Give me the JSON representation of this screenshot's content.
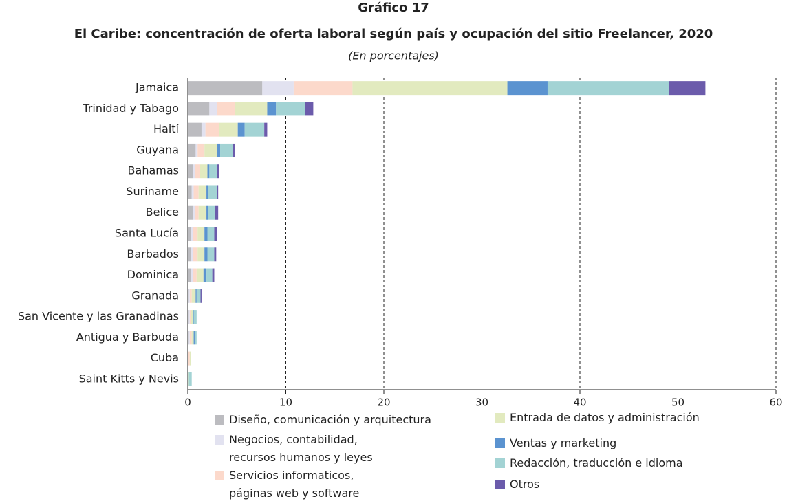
{
  "chart_data": {
    "type": "stacked-barh",
    "title": "Gráfico 17",
    "subtitle": "El Caribe: concentración de oferta laboral según país y ocupación del sitio Freelancer, 2020",
    "note": "(En porcentajes)",
    "categories": [
      "Jamaica",
      "Trinidad y Tabago",
      "Haití",
      "Guyana",
      "Bahamas",
      "Suriname",
      "Belice",
      "Santa Lucía",
      "Barbados",
      "Dominica",
      "Granada",
      "San Vicente y las Granadinas",
      "Antigua y Barbuda",
      "Cuba",
      "Saint Kitts y Nevis"
    ],
    "series": [
      {
        "name": "Diseño, comunicación y arquitectura",
        "color": "#bcbcc0",
        "values": [
          7.6,
          2.2,
          1.4,
          0.8,
          0.5,
          0.4,
          0.5,
          0.3,
          0.3,
          0.3,
          0.1,
          0.1,
          0.1,
          0,
          0
        ]
      },
      {
        "name": "Negocios, contabilidad,\nrecursos humanos y leyes",
        "color": "#e2e2f0",
        "values": [
          3.2,
          0.8,
          0.4,
          0.2,
          0.2,
          0.2,
          0.2,
          0.2,
          0.2,
          0.2,
          0.1,
          0.1,
          0.1,
          0,
          0
        ]
      },
      {
        "name": "Servicios informaticos,\npáginas web y software",
        "color": "#fcd9cb",
        "values": [
          6.0,
          1.8,
          1.4,
          0.7,
          0.5,
          0.5,
          0.4,
          0.5,
          0.5,
          0.4,
          0.2,
          0.1,
          0.2,
          0.2,
          0
        ]
      },
      {
        "name": "Entrada de datos y administración",
        "color": "#e2eabf",
        "values": [
          15.8,
          3.3,
          1.9,
          1.3,
          0.8,
          0.8,
          0.8,
          0.7,
          0.7,
          0.7,
          0.4,
          0.2,
          0.2,
          0.1,
          0.1
        ]
      },
      {
        "name": "Ventas y marketing",
        "color": "#5b93d0",
        "values": [
          4.1,
          0.9,
          0.7,
          0.3,
          0.2,
          0.2,
          0.2,
          0.3,
          0.3,
          0.3,
          0.1,
          0.1,
          0.1,
          0,
          0
        ]
      },
      {
        "name": "Redacción, traducción e idioma",
        "color": "#a3d3d4",
        "values": [
          12.4,
          3.0,
          2.0,
          1.3,
          0.8,
          0.9,
          0.7,
          0.7,
          0.7,
          0.6,
          0.4,
          0.3,
          0.2,
          0,
          0.3
        ]
      },
      {
        "name": "Otros",
        "color": "#6b5bab",
        "values": [
          3.7,
          0.8,
          0.3,
          0.2,
          0.2,
          0.1,
          0.3,
          0.3,
          0.2,
          0.2,
          0.1,
          0,
          0,
          0,
          0
        ]
      }
    ],
    "xlim": [
      0,
      60
    ],
    "xticks": [
      0,
      10,
      20,
      30,
      40,
      50,
      60
    ],
    "grid": true
  }
}
